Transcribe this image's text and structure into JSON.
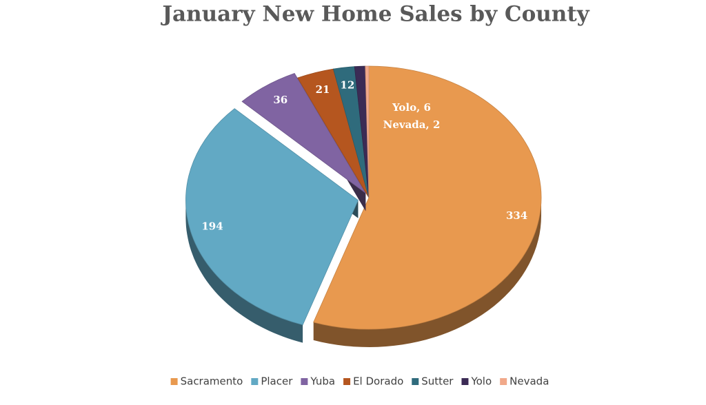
{
  "chart_data": {
    "type": "pie3d",
    "title": "January New Home Sales by County",
    "categories": [
      "Sacramento",
      "Placer",
      "Yuba",
      "El Dorado",
      "Sutter",
      "Yolo",
      "Nevada"
    ],
    "values": [
      334,
      194,
      36,
      21,
      12,
      6,
      2
    ],
    "value_labels": [
      "334",
      "194",
      "36",
      "21",
      "12",
      "Yolo, 6",
      "Nevada, 2"
    ],
    "colors": [
      "#E8994F",
      "#62A9C4",
      "#8064A2",
      "#B5561F",
      "#2F6B7C",
      "#3B2B55",
      "#F1A98A"
    ],
    "legend": "bottom"
  }
}
